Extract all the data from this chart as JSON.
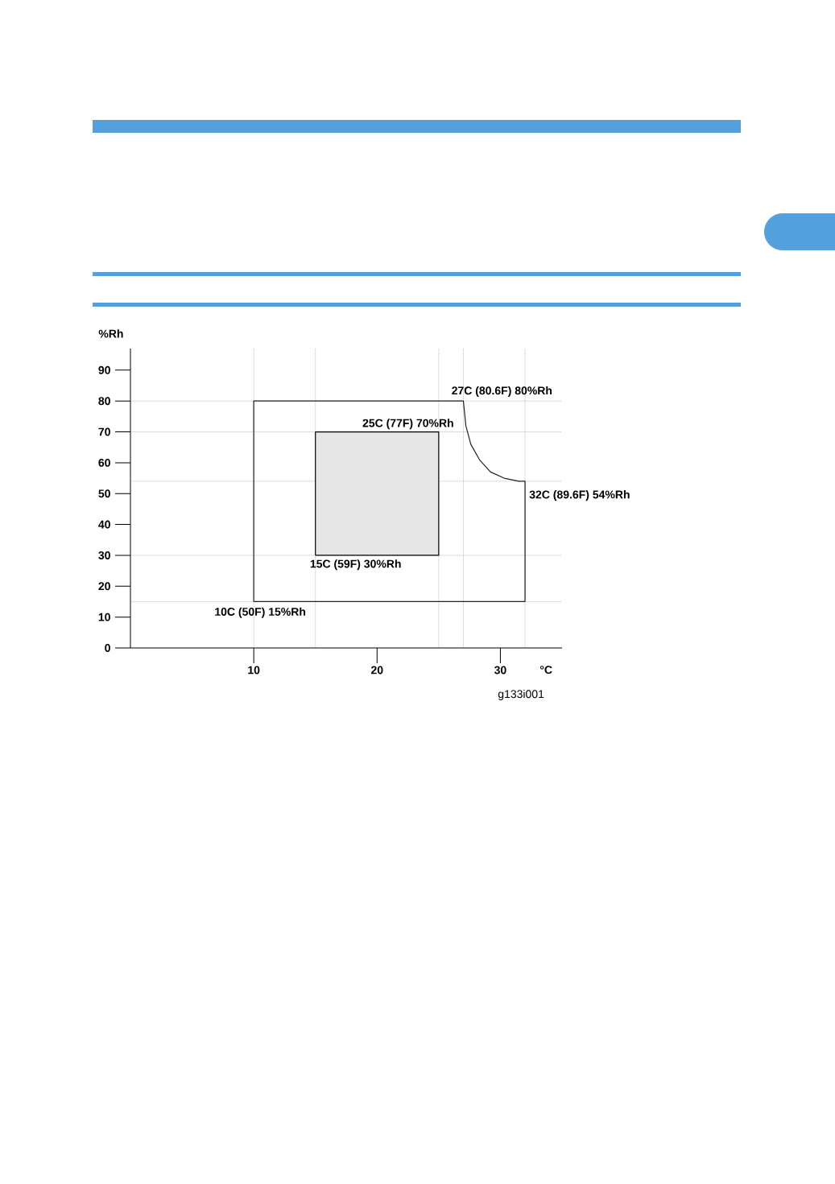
{
  "chart_data": {
    "type": "line",
    "xlabel": "°C",
    "ylabel": "%Rh",
    "xlim": [
      0,
      35
    ],
    "ylim": [
      0,
      97
    ],
    "xticks": [
      10,
      20,
      30
    ],
    "yticks": [
      0,
      10,
      20,
      30,
      40,
      50,
      60,
      70,
      80,
      90
    ],
    "series": [
      {
        "color": "#222222",
        "line_style": "solid",
        "x": [
          10,
          10,
          27,
          27.2,
          27.6,
          28.3,
          29.2,
          30.3,
          31.5,
          32,
          32
        ],
        "values": [
          15,
          80,
          80,
          72,
          66,
          61,
          57,
          55,
          54,
          54,
          15
        ]
      },
      {
        "color": "#222222",
        "line_style": "solid",
        "x": [
          10,
          32
        ],
        "values": [
          15,
          15
        ]
      },
      {
        "type": "area",
        "color": "#e6e6e6",
        "x": [
          15,
          15,
          25,
          25,
          15
        ],
        "values": [
          30,
          70,
          70,
          30,
          30
        ]
      }
    ],
    "ref_lines": [
      {
        "axis": "y",
        "value": 80,
        "line_style": "dotted",
        "color": "#666666"
      },
      {
        "axis": "y",
        "value": 70,
        "line_style": "dotted",
        "color": "#666666"
      },
      {
        "axis": "y",
        "value": 54,
        "line_style": "dotted",
        "color": "#666666"
      },
      {
        "axis": "y",
        "value": 30,
        "line_style": "dotted",
        "color": "#666666"
      },
      {
        "axis": "y",
        "value": 15,
        "line_style": "dotted",
        "color": "#666666"
      },
      {
        "axis": "x",
        "value": 10,
        "line_style": "dotted",
        "color": "#666666"
      },
      {
        "axis": "x",
        "value": 15,
        "line_style": "dotted",
        "color": "#666666"
      },
      {
        "axis": "x",
        "value": 25,
        "line_style": "dotted",
        "color": "#666666"
      },
      {
        "axis": "x",
        "value": 27,
        "line_style": "dotted",
        "color": "#666666"
      },
      {
        "axis": "x",
        "value": 32,
        "line_style": "dotted",
        "color": "#666666"
      }
    ],
    "annotations": [
      {
        "text": "27C (80.6F) 80%Rh",
        "x": 27,
        "y": 80
      },
      {
        "text": "25C (77F) 70%Rh",
        "x": 25,
        "y": 70
      },
      {
        "text": "15C (59F) 30%Rh",
        "x": 15,
        "y": 30
      },
      {
        "text": "32C (89.6F) 54%Rh",
        "x": 32,
        "y": 54
      },
      {
        "text": "10C (50F) 15%Rh",
        "x": 10,
        "y": 15
      },
      "g133i001"
    ]
  }
}
